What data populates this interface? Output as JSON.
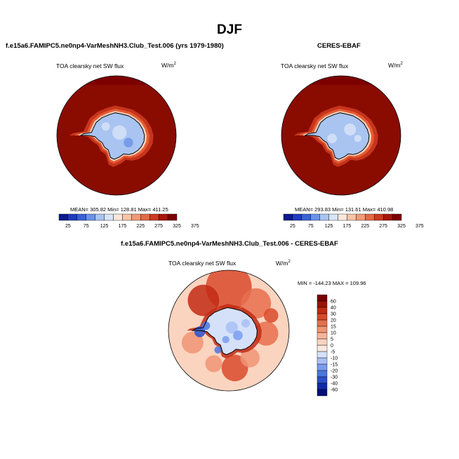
{
  "figure": {
    "season_title": "DJF",
    "diff_title": "f.e15a6.FAMIPC5.ne0np4-VarMeshNH3.Club_Test.006 - CERES-EBAF"
  },
  "colors": {
    "abs_palette": [
      "#0b1a8f",
      "#1f3bbf",
      "#3a62d6",
      "#6a93e8",
      "#a7c4f3",
      "#d8e5f8",
      "#fbe8dc",
      "#f7c4a5",
      "#f09b76",
      "#e46a45",
      "#cc3a1f",
      "#a81608",
      "#7d0000"
    ],
    "diff_palette": [
      "#050f7a",
      "#0f2aa8",
      "#2a4fcc",
      "#4b75e0",
      "#7a9cee",
      "#a8c0f5",
      "#d4e1f9",
      "#f7e8df",
      "#fbd4bf",
      "#f7b59a",
      "#f09474",
      "#e66f4e",
      "#d94a2c",
      "#c22a14",
      "#9b1305",
      "#7a0000"
    ],
    "coast": "#000000",
    "antarctica_abs": "#a9c4f1",
    "ocean_abs": "#8a0c00",
    "ring_abs": "#e65b34",
    "ring_inner_abs": "#f9d4be"
  },
  "panels": [
    {
      "title": "f.e15a6.FAMIPC5.ne0np4-VarMeshNH3.Club_Test.006 (yrs 1979-1980)",
      "variable": "TOA clearsky net SW flux",
      "units": "W/m",
      "units_sup": "2",
      "stats": "MEAN= 305.82  Min= 128.81  Max= 411.25"
    },
    {
      "title": "CERES-EBAF",
      "variable": "TOA clearsky net SW flux",
      "units": "W/m",
      "units_sup": "2",
      "stats": "MEAN= 293.83  Min= 131.61  Max= 410.98"
    },
    {
      "title": "",
      "variable": "TOA clearsky net SW flux",
      "units": "W/m",
      "units_sup": "2",
      "stats": "MIN = -144.23 MAX = 109.96"
    }
  ],
  "chart_data": [
    {
      "type": "heatmap",
      "projection": "south-polar-stereographic",
      "colorbar": {
        "orientation": "horizontal",
        "levels": [
          25,
          50,
          75,
          100,
          125,
          150,
          175,
          200,
          225,
          250,
          275,
          300,
          325,
          350,
          375
        ],
        "tick_labels": [
          "25",
          "75",
          "125",
          "175",
          "225",
          "275",
          "325",
          "375"
        ]
      },
      "stats": {
        "mean": 305.82,
        "min": 128.81,
        "max": 411.25
      }
    },
    {
      "type": "heatmap",
      "projection": "south-polar-stereographic",
      "colorbar": {
        "orientation": "horizontal",
        "levels": [
          25,
          50,
          75,
          100,
          125,
          150,
          175,
          200,
          225,
          250,
          275,
          300,
          325,
          350,
          375
        ],
        "tick_labels": [
          "25",
          "75",
          "125",
          "175",
          "225",
          "275",
          "325",
          "375"
        ]
      },
      "stats": {
        "mean": 293.83,
        "min": 131.61,
        "max": 410.98
      }
    },
    {
      "type": "heatmap",
      "projection": "south-polar-stereographic",
      "colorbar": {
        "orientation": "vertical",
        "levels": [
          -60,
          -40,
          -30,
          -20,
          -15,
          -10,
          -5,
          0,
          5,
          10,
          15,
          20,
          30,
          40,
          60
        ],
        "tick_labels": [
          "60",
          "40",
          "30",
          "20",
          "15",
          "10",
          "5",
          "0",
          "-5",
          "-10",
          "-15",
          "-20",
          "-30",
          "-40",
          "-60"
        ]
      },
      "stats": {
        "min": -144.23,
        "max": 109.96
      }
    }
  ]
}
